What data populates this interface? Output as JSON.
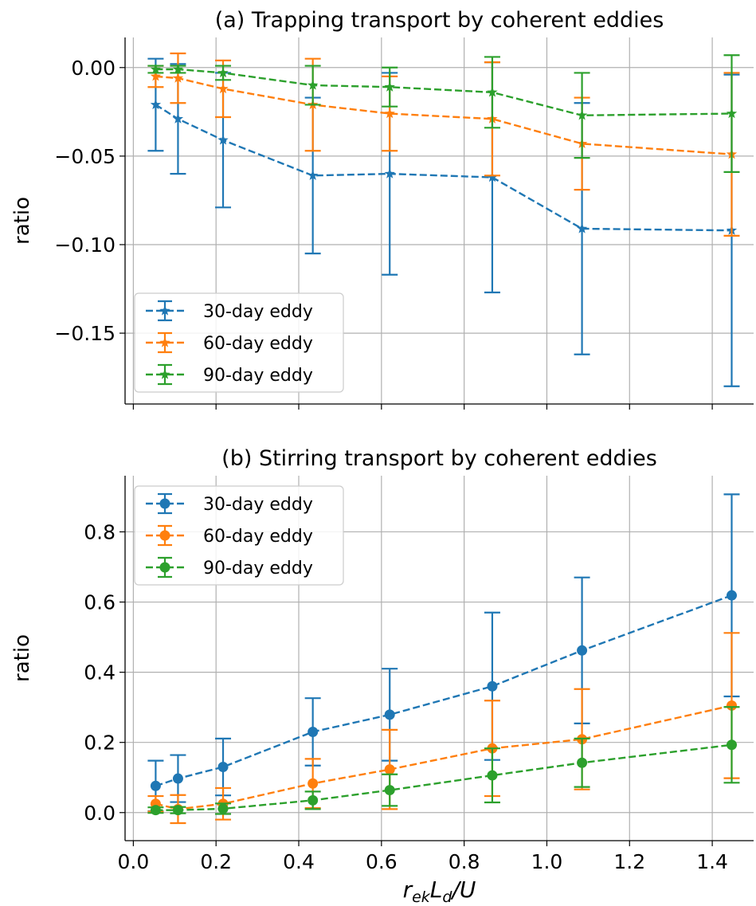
{
  "chart_data": [
    {
      "type": "line",
      "marker": "star",
      "title": "(a) Trapping transport by coherent eddies",
      "xlabel": "",
      "ylabel": "ratio",
      "xlim": [
        -0.02,
        1.5
      ],
      "ylim": [
        -0.19,
        0.017
      ],
      "xticks": [
        0.0,
        0.2,
        0.4,
        0.6,
        0.8,
        1.0,
        1.2,
        1.4
      ],
      "show_xticklabels": false,
      "yticks": [
        0.0,
        -0.05,
        -0.1,
        -0.15
      ],
      "yticklabels": [
        "0.00",
        "−0.05",
        "−0.10",
        "−0.15"
      ],
      "grid": true,
      "legend": "bottom-left",
      "x": [
        0.054,
        0.108,
        0.217,
        0.434,
        0.62,
        0.868,
        1.085,
        1.447
      ],
      "series": [
        {
          "name": "30-day eddy",
          "color": "#1f77b4",
          "values": [
            -0.021,
            -0.029,
            -0.041,
            -0.061,
            -0.06,
            -0.062,
            -0.091,
            -0.092
          ],
          "err": [
            0.026,
            0.031,
            0.038,
            0.044,
            0.057,
            0.065,
            0.071,
            0.088
          ]
        },
        {
          "name": "60-day eddy",
          "color": "#ff7f0e",
          "values": [
            -0.005,
            -0.006,
            -0.012,
            -0.021,
            -0.026,
            -0.029,
            -0.043,
            -0.049
          ],
          "err": [
            0.006,
            0.014,
            0.016,
            0.026,
            0.021,
            0.032,
            0.026,
            0.046
          ]
        },
        {
          "name": "90-day eddy",
          "color": "#2ca02c",
          "values": [
            -0.001,
            -0.001,
            -0.003,
            -0.01,
            -0.011,
            -0.014,
            -0.027,
            -0.026
          ],
          "err": [
            0.002,
            0.002,
            0.004,
            0.011,
            0.011,
            0.02,
            0.024,
            0.033
          ]
        }
      ]
    },
    {
      "type": "line",
      "marker": "circle",
      "title": "(b) Stirring transport by coherent eddies",
      "xlabel": "r_ek L_d / U",
      "xlabel_parts": {
        "r": "r",
        "r_sub": "ek",
        "L": "L",
        "L_sub": "d",
        "rest": "/U"
      },
      "ylabel": "ratio",
      "xlim": [
        -0.02,
        1.5
      ],
      "ylim": [
        -0.08,
        0.96
      ],
      "xticks": [
        0.0,
        0.2,
        0.4,
        0.6,
        0.8,
        1.0,
        1.2,
        1.4
      ],
      "xticklabels": [
        "0.0",
        "0.2",
        "0.4",
        "0.6",
        "0.8",
        "1.0",
        "1.2",
        "1.4"
      ],
      "yticks": [
        0.0,
        0.2,
        0.4,
        0.6,
        0.8
      ],
      "yticklabels": [
        "0.0",
        "0.2",
        "0.4",
        "0.6",
        "0.8"
      ],
      "grid": true,
      "legend": "top-left",
      "x": [
        0.054,
        0.108,
        0.217,
        0.434,
        0.62,
        0.868,
        1.085,
        1.447
      ],
      "series": [
        {
          "name": "30-day eddy",
          "color": "#1f77b4",
          "values": [
            0.076,
            0.097,
            0.13,
            0.23,
            0.279,
            0.36,
            0.462,
            0.619
          ],
          "err": [
            0.072,
            0.067,
            0.081,
            0.096,
            0.131,
            0.21,
            0.208,
            0.288
          ]
        },
        {
          "name": "60-day eddy",
          "color": "#ff7f0e",
          "values": [
            0.025,
            0.01,
            0.025,
            0.083,
            0.123,
            0.183,
            0.209,
            0.305
          ],
          "err": [
            0.022,
            0.04,
            0.045,
            0.07,
            0.113,
            0.136,
            0.143,
            0.207
          ]
        },
        {
          "name": "90-day eddy",
          "color": "#2ca02c",
          "values": [
            0.007,
            0.007,
            0.011,
            0.035,
            0.064,
            0.106,
            0.142,
            0.193
          ],
          "err": [
            0.008,
            0.009,
            0.015,
            0.025,
            0.045,
            0.077,
            0.069,
            0.108
          ]
        }
      ]
    }
  ]
}
